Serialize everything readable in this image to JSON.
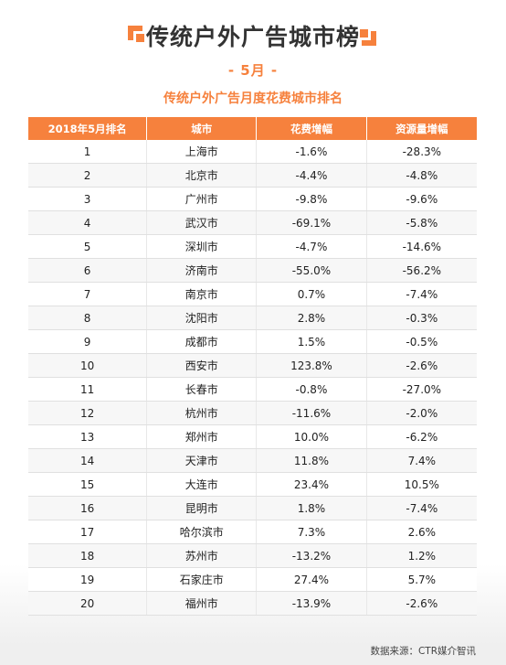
{
  "title": "传统户外广告城市榜",
  "month": "- 5月 -",
  "subtitle": "传统户外广告月度花费城市排名",
  "table": {
    "headers": [
      "2018年5月排名",
      "城市",
      "花费增幅",
      "资源量增幅"
    ],
    "rows": [
      [
        "1",
        "上海市",
        "-1.6%",
        "-28.3%"
      ],
      [
        "2",
        "北京市",
        "-4.4%",
        "-4.8%"
      ],
      [
        "3",
        "广州市",
        "-9.8%",
        "-9.6%"
      ],
      [
        "4",
        "武汉市",
        "-69.1%",
        "-5.8%"
      ],
      [
        "5",
        "深圳市",
        "-4.7%",
        "-14.6%"
      ],
      [
        "6",
        "济南市",
        "-55.0%",
        "-56.2%"
      ],
      [
        "7",
        "南京市",
        "0.7%",
        "-7.4%"
      ],
      [
        "8",
        "沈阳市",
        "2.8%",
        "-0.3%"
      ],
      [
        "9",
        "成都市",
        "1.5%",
        "-0.5%"
      ],
      [
        "10",
        "西安市",
        "123.8%",
        "-2.6%"
      ],
      [
        "11",
        "长春市",
        "-0.8%",
        "-27.0%"
      ],
      [
        "12",
        "杭州市",
        "-11.6%",
        "-2.0%"
      ],
      [
        "13",
        "郑州市",
        "10.0%",
        "-6.2%"
      ],
      [
        "14",
        "天津市",
        "11.8%",
        "7.4%"
      ],
      [
        "15",
        "大连市",
        "23.4%",
        "10.5%"
      ],
      [
        "16",
        "昆明市",
        "1.8%",
        "-7.4%"
      ],
      [
        "17",
        "哈尔滨市",
        "7.3%",
        "2.6%"
      ],
      [
        "18",
        "苏州市",
        "-13.2%",
        "1.2%"
      ],
      [
        "19",
        "石家庄市",
        "27.4%",
        "5.7%"
      ],
      [
        "20",
        "福州市",
        "-13.9%",
        "-2.6%"
      ]
    ]
  },
  "source": "数据来源：CTR媒介智讯",
  "colors": {
    "accent": "#f6813d",
    "stripe": "#f7f7f7"
  }
}
